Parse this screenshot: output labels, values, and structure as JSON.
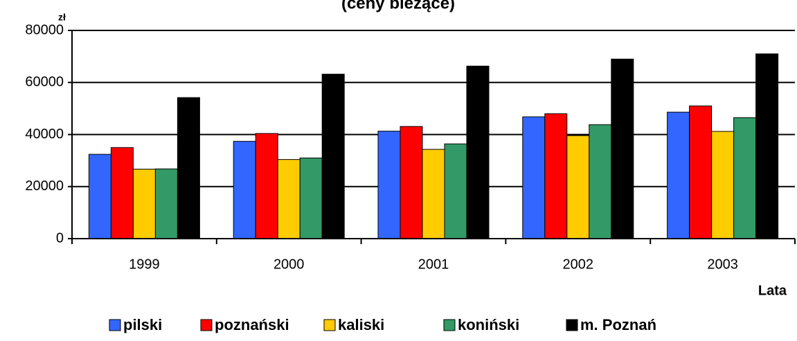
{
  "chart_data": {
    "type": "bar",
    "title": "(ceny bieżące)",
    "y_label": "zł",
    "x_label": "Lata",
    "categories": [
      "1999",
      "2000",
      "2001",
      "2002",
      "2003"
    ],
    "series": [
      {
        "name": "pilski",
        "color": "#3366ff",
        "values": [
          32400,
          37400,
          41300,
          46800,
          48600
        ]
      },
      {
        "name": "poznański",
        "color": "#ff0000",
        "values": [
          35000,
          40400,
          43100,
          48000,
          51000
        ]
      },
      {
        "name": "kaliski",
        "color": "#ffcc00",
        "values": [
          26700,
          30400,
          34300,
          39600,
          41200
        ]
      },
      {
        "name": "koniński",
        "color": "#339966",
        "values": [
          26800,
          31000,
          36400,
          43800,
          46500
        ]
      },
      {
        "name": "m. Poznań",
        "color": "#000000",
        "values": [
          54200,
          63200,
          66300,
          69000,
          71000
        ]
      }
    ],
    "ylim": [
      0,
      80000
    ],
    "yticks": [
      0,
      20000,
      40000,
      60000,
      80000
    ],
    "grid": true,
    "legend": "bottom"
  }
}
